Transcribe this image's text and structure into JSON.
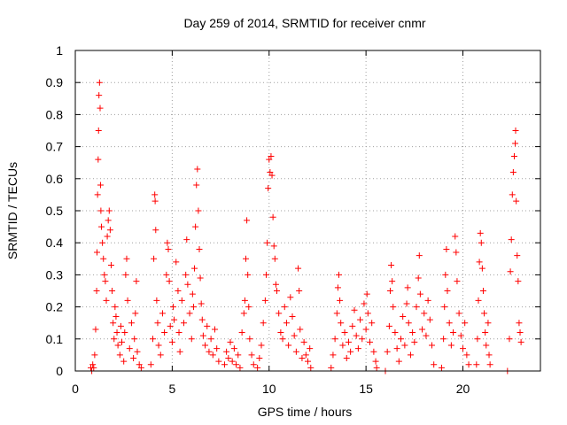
{
  "chart_data": {
    "type": "scatter",
    "title": "Day 259 of 2014, SRMTID for receiver cnmr",
    "xlabel": "GPS time / hours",
    "ylabel": "SRMTID / TECUs",
    "xlim": [
      0,
      24
    ],
    "ylim": [
      0,
      1
    ],
    "xticks": [
      0,
      5,
      10,
      15,
      20
    ],
    "yticks": [
      0,
      0.1,
      0.2,
      0.3,
      0.4,
      0.5,
      0.6,
      0.7,
      0.8,
      0.9,
      1
    ],
    "xtick_labels": [
      "0",
      "5",
      "10",
      "15",
      "20"
    ],
    "ytick_labels": [
      "0",
      "0.1",
      "0.2",
      "0.3",
      "0.4",
      "0.5",
      "0.6",
      "0.7",
      "0.8",
      "0.9",
      "1"
    ],
    "grid": true,
    "marker": "+",
    "color": "#ff0000",
    "series": [
      {
        "name": "SRMTID",
        "points": [
          [
            0.8,
            0.01
          ],
          [
            0.85,
            0.0
          ],
          [
            0.9,
            0.02
          ],
          [
            0.95,
            0.01
          ],
          [
            1.0,
            0.05
          ],
          [
            1.05,
            0.13
          ],
          [
            1.1,
            0.25
          ],
          [
            1.12,
            0.37
          ],
          [
            1.15,
            0.55
          ],
          [
            1.18,
            0.66
          ],
          [
            1.2,
            0.75
          ],
          [
            1.22,
            0.86
          ],
          [
            1.25,
            0.9
          ],
          [
            1.28,
            0.82
          ],
          [
            1.3,
            0.58
          ],
          [
            1.32,
            0.5
          ],
          [
            1.35,
            0.45
          ],
          [
            1.4,
            0.4
          ],
          [
            1.45,
            0.35
          ],
          [
            1.5,
            0.3
          ],
          [
            1.55,
            0.28
          ],
          [
            1.6,
            0.22
          ],
          [
            1.65,
            0.42
          ],
          [
            1.7,
            0.47
          ],
          [
            1.75,
            0.5
          ],
          [
            1.8,
            0.44
          ],
          [
            1.85,
            0.33
          ],
          [
            1.9,
            0.25
          ],
          [
            1.95,
            0.15
          ],
          [
            2.0,
            0.1
          ],
          [
            2.05,
            0.2
          ],
          [
            2.1,
            0.17
          ],
          [
            2.15,
            0.12
          ],
          [
            2.2,
            0.08
          ],
          [
            2.3,
            0.05
          ],
          [
            2.35,
            0.14
          ],
          [
            2.4,
            0.09
          ],
          [
            2.5,
            0.03
          ],
          [
            2.55,
            0.12
          ],
          [
            2.6,
            0.3
          ],
          [
            2.65,
            0.35
          ],
          [
            2.7,
            0.22
          ],
          [
            2.8,
            0.07
          ],
          [
            2.9,
            0.15
          ],
          [
            3.0,
            0.04
          ],
          [
            3.05,
            0.1
          ],
          [
            3.1,
            0.18
          ],
          [
            3.15,
            0.28
          ],
          [
            3.2,
            0.06
          ],
          [
            3.3,
            0.02
          ],
          [
            3.4,
            0.01
          ],
          [
            3.9,
            0.02
          ],
          [
            4.0,
            0.1
          ],
          [
            4.05,
            0.35
          ],
          [
            4.1,
            0.55
          ],
          [
            4.12,
            0.53
          ],
          [
            4.15,
            0.44
          ],
          [
            4.2,
            0.22
          ],
          [
            4.25,
            0.15
          ],
          [
            4.3,
            0.08
          ],
          [
            4.4,
            0.05
          ],
          [
            4.5,
            0.18
          ],
          [
            4.6,
            0.12
          ],
          [
            4.7,
            0.3
          ],
          [
            4.75,
            0.4
          ],
          [
            4.8,
            0.38
          ],
          [
            4.85,
            0.28
          ],
          [
            4.9,
            0.14
          ],
          [
            5.0,
            0.09
          ],
          [
            5.05,
            0.2
          ],
          [
            5.1,
            0.16
          ],
          [
            5.2,
            0.34
          ],
          [
            5.3,
            0.25
          ],
          [
            5.35,
            0.12
          ],
          [
            5.4,
            0.06
          ],
          [
            5.5,
            0.22
          ],
          [
            5.6,
            0.15
          ],
          [
            5.7,
            0.3
          ],
          [
            5.75,
            0.41
          ],
          [
            5.8,
            0.27
          ],
          [
            5.9,
            0.18
          ],
          [
            6.0,
            0.1
          ],
          [
            6.05,
            0.24
          ],
          [
            6.1,
            0.2
          ],
          [
            6.15,
            0.32
          ],
          [
            6.2,
            0.45
          ],
          [
            6.25,
            0.58
          ],
          [
            6.3,
            0.63
          ],
          [
            6.35,
            0.5
          ],
          [
            6.4,
            0.38
          ],
          [
            6.45,
            0.29
          ],
          [
            6.5,
            0.21
          ],
          [
            6.55,
            0.16
          ],
          [
            6.6,
            0.11
          ],
          [
            6.7,
            0.08
          ],
          [
            6.8,
            0.14
          ],
          [
            6.9,
            0.06
          ],
          [
            7.0,
            0.1
          ],
          [
            7.1,
            0.05
          ],
          [
            7.2,
            0.13
          ],
          [
            7.3,
            0.07
          ],
          [
            7.4,
            0.03
          ],
          [
            7.7,
            0.02
          ],
          [
            7.8,
            0.06
          ],
          [
            7.9,
            0.04
          ],
          [
            8.0,
            0.09
          ],
          [
            8.1,
            0.03
          ],
          [
            8.2,
            0.07
          ],
          [
            8.3,
            0.02
          ],
          [
            8.4,
            0.05
          ],
          [
            8.5,
            0.01
          ],
          [
            8.6,
            0.12
          ],
          [
            8.7,
            0.18
          ],
          [
            8.75,
            0.22
          ],
          [
            8.8,
            0.35
          ],
          [
            8.85,
            0.47
          ],
          [
            8.9,
            0.3
          ],
          [
            8.95,
            0.2
          ],
          [
            9.0,
            0.1
          ],
          [
            9.1,
            0.05
          ],
          [
            9.2,
            0.02
          ],
          [
            9.4,
            0.01
          ],
          [
            9.5,
            0.04
          ],
          [
            9.6,
            0.08
          ],
          [
            9.7,
            0.15
          ],
          [
            9.8,
            0.22
          ],
          [
            9.85,
            0.3
          ],
          [
            9.9,
            0.4
          ],
          [
            9.95,
            0.57
          ],
          [
            10.0,
            0.66
          ],
          [
            10.05,
            0.62
          ],
          [
            10.1,
            0.67
          ],
          [
            10.15,
            0.61
          ],
          [
            10.2,
            0.48
          ],
          [
            10.25,
            0.39
          ],
          [
            10.3,
            0.35
          ],
          [
            10.35,
            0.27
          ],
          [
            10.4,
            0.25
          ],
          [
            10.5,
            0.18
          ],
          [
            10.6,
            0.12
          ],
          [
            10.7,
            0.1
          ],
          [
            10.8,
            0.2
          ],
          [
            10.9,
            0.15
          ],
          [
            11.0,
            0.08
          ],
          [
            11.1,
            0.23
          ],
          [
            11.2,
            0.17
          ],
          [
            11.3,
            0.11
          ],
          [
            11.4,
            0.06
          ],
          [
            11.5,
            0.32
          ],
          [
            11.55,
            0.25
          ],
          [
            11.6,
            0.13
          ],
          [
            11.7,
            0.04
          ],
          [
            11.8,
            0.09
          ],
          [
            11.9,
            0.05
          ],
          [
            12.0,
            0.03
          ],
          [
            12.1,
            0.07
          ],
          [
            12.15,
            0.01
          ],
          [
            13.2,
            0.01
          ],
          [
            13.3,
            0.05
          ],
          [
            13.4,
            0.1
          ],
          [
            13.5,
            0.18
          ],
          [
            13.55,
            0.26
          ],
          [
            13.6,
            0.3
          ],
          [
            13.65,
            0.22
          ],
          [
            13.7,
            0.15
          ],
          [
            13.8,
            0.08
          ],
          [
            13.9,
            0.12
          ],
          [
            14.0,
            0.04
          ],
          [
            14.1,
            0.09
          ],
          [
            14.2,
            0.06
          ],
          [
            14.3,
            0.14
          ],
          [
            14.4,
            0.19
          ],
          [
            14.5,
            0.11
          ],
          [
            14.6,
            0.07
          ],
          [
            14.7,
            0.16
          ],
          [
            14.8,
            0.1
          ],
          [
            14.9,
            0.21
          ],
          [
            15.0,
            0.13
          ],
          [
            15.05,
            0.24
          ],
          [
            15.1,
            0.18
          ],
          [
            15.2,
            0.09
          ],
          [
            15.3,
            0.15
          ],
          [
            15.4,
            0.06
          ],
          [
            15.5,
            0.03
          ],
          [
            15.55,
            0.01
          ],
          [
            16.0,
            0.0
          ],
          [
            16.1,
            0.06
          ],
          [
            16.2,
            0.14
          ],
          [
            16.25,
            0.25
          ],
          [
            16.3,
            0.33
          ],
          [
            16.35,
            0.28
          ],
          [
            16.4,
            0.2
          ],
          [
            16.5,
            0.12
          ],
          [
            16.6,
            0.07
          ],
          [
            16.7,
            0.03
          ],
          [
            16.8,
            0.1
          ],
          [
            16.9,
            0.17
          ],
          [
            17.0,
            0.08
          ],
          [
            17.1,
            0.21
          ],
          [
            17.15,
            0.26
          ],
          [
            17.2,
            0.15
          ],
          [
            17.3,
            0.05
          ],
          [
            17.4,
            0.12
          ],
          [
            17.5,
            0.09
          ],
          [
            17.6,
            0.2
          ],
          [
            17.7,
            0.29
          ],
          [
            17.75,
            0.36
          ],
          [
            17.8,
            0.24
          ],
          [
            17.9,
            0.13
          ],
          [
            18.0,
            0.18
          ],
          [
            18.1,
            0.11
          ],
          [
            18.2,
            0.22
          ],
          [
            18.3,
            0.16
          ],
          [
            18.4,
            0.08
          ],
          [
            18.5,
            0.02
          ],
          [
            18.9,
            0.01
          ],
          [
            19.0,
            0.1
          ],
          [
            19.05,
            0.2
          ],
          [
            19.1,
            0.3
          ],
          [
            19.15,
            0.38
          ],
          [
            19.2,
            0.25
          ],
          [
            19.3,
            0.15
          ],
          [
            19.4,
            0.08
          ],
          [
            19.5,
            0.12
          ],
          [
            19.6,
            0.42
          ],
          [
            19.65,
            0.37
          ],
          [
            19.7,
            0.28
          ],
          [
            19.8,
            0.18
          ],
          [
            19.9,
            0.11
          ],
          [
            20.0,
            0.07
          ],
          [
            20.1,
            0.15
          ],
          [
            20.2,
            0.05
          ],
          [
            20.3,
            0.02
          ],
          [
            20.7,
            0.02
          ],
          [
            20.75,
            0.1
          ],
          [
            20.8,
            0.22
          ],
          [
            20.85,
            0.34
          ],
          [
            20.9,
            0.43
          ],
          [
            20.95,
            0.4
          ],
          [
            21.0,
            0.32
          ],
          [
            21.05,
            0.25
          ],
          [
            21.1,
            0.18
          ],
          [
            21.15,
            0.12
          ],
          [
            21.2,
            0.08
          ],
          [
            21.3,
            0.15
          ],
          [
            21.35,
            0.05
          ],
          [
            21.4,
            0.02
          ],
          [
            22.3,
            0.0
          ],
          [
            22.4,
            0.1
          ],
          [
            22.45,
            0.31
          ],
          [
            22.5,
            0.41
          ],
          [
            22.55,
            0.55
          ],
          [
            22.6,
            0.62
          ],
          [
            22.65,
            0.67
          ],
          [
            22.7,
            0.71
          ],
          [
            22.72,
            0.75
          ],
          [
            22.75,
            0.53
          ],
          [
            22.8,
            0.36
          ],
          [
            22.85,
            0.28
          ],
          [
            22.9,
            0.15
          ],
          [
            22.95,
            0.12
          ],
          [
            23.0,
            0.09
          ]
        ]
      }
    ]
  }
}
